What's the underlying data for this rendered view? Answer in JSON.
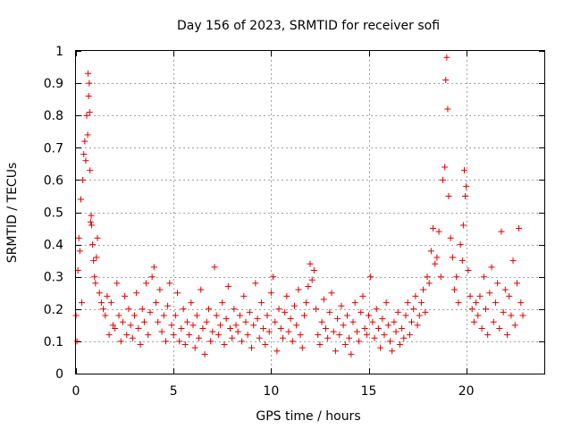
{
  "chart_data": {
    "type": "scatter",
    "title": "Day 156 of 2023, SRMTID for receiver sofi",
    "xlabel": "GPS time / hours",
    "ylabel": "SRMTID / TECUs",
    "xlim": [
      0,
      24
    ],
    "ylim": [
      0,
      1
    ],
    "xticks": [
      0,
      5,
      10,
      15,
      20
    ],
    "xtick_labels": [
      "0",
      "5",
      "10",
      "15",
      "20"
    ],
    "yticks": [
      0,
      0.1,
      0.2,
      0.3,
      0.4,
      0.5,
      0.6,
      0.7,
      0.8,
      0.9,
      1
    ],
    "ytick_labels": [
      "0",
      "0.1",
      "0.2",
      "0.3",
      "0.4",
      "0.5",
      "0.6",
      "0.7",
      "0.8",
      "0.9",
      "1"
    ],
    "grid": true,
    "marker": "+",
    "series": [
      {
        "name": "SRMTID",
        "color": "#e00000",
        "x": [
          0.0,
          0.05,
          0.1,
          0.15,
          0.2,
          0.25,
          0.3,
          0.35,
          0.4,
          0.45,
          0.5,
          0.55,
          0.6,
          0.62,
          0.65,
          0.68,
          0.7,
          0.72,
          0.75,
          0.78,
          0.8,
          0.85,
          0.9,
          0.95,
          1.0,
          1.05,
          1.1,
          1.2,
          1.3,
          1.4,
          1.5,
          1.6,
          1.7,
          1.8,
          1.9,
          2.0,
          2.1,
          2.2,
          2.3,
          2.4,
          2.5,
          2.6,
          2.7,
          2.8,
          2.9,
          3.0,
          3.1,
          3.2,
          3.3,
          3.4,
          3.5,
          3.6,
          3.7,
          3.8,
          3.9,
          4.0,
          4.1,
          4.2,
          4.3,
          4.4,
          4.5,
          4.6,
          4.7,
          4.8,
          4.9,
          5.0,
          5.1,
          5.2,
          5.3,
          5.4,
          5.5,
          5.6,
          5.7,
          5.8,
          5.9,
          6.0,
          6.1,
          6.2,
          6.3,
          6.4,
          6.5,
          6.6,
          6.7,
          6.8,
          6.9,
          7.0,
          7.1,
          7.2,
          7.3,
          7.4,
          7.5,
          7.6,
          7.7,
          7.8,
          7.9,
          8.0,
          8.1,
          8.2,
          8.3,
          8.4,
          8.5,
          8.6,
          8.7,
          8.8,
          8.9,
          9.0,
          9.1,
          9.2,
          9.3,
          9.4,
          9.5,
          9.6,
          9.7,
          9.8,
          9.9,
          10.0,
          10.1,
          10.2,
          10.3,
          10.4,
          10.5,
          10.6,
          10.7,
          10.8,
          10.9,
          11.0,
          11.1,
          11.2,
          11.3,
          11.4,
          11.5,
          11.6,
          11.7,
          11.8,
          11.9,
          12.0,
          12.1,
          12.2,
          12.3,
          12.4,
          12.5,
          12.6,
          12.7,
          12.8,
          12.9,
          13.0,
          13.1,
          13.2,
          13.3,
          13.4,
          13.5,
          13.6,
          13.7,
          13.8,
          13.9,
          14.0,
          14.1,
          14.2,
          14.3,
          14.4,
          14.5,
          14.6,
          14.7,
          14.8,
          14.9,
          15.0,
          15.1,
          15.2,
          15.3,
          15.4,
          15.5,
          15.6,
          15.7,
          15.8,
          15.9,
          16.0,
          16.1,
          16.2,
          16.3,
          16.4,
          16.5,
          16.6,
          16.7,
          16.8,
          16.9,
          17.0,
          17.1,
          17.2,
          17.3,
          17.4,
          17.5,
          17.6,
          17.7,
          17.8,
          17.9,
          18.0,
          18.1,
          18.2,
          18.3,
          18.4,
          18.5,
          18.6,
          18.7,
          18.8,
          18.9,
          18.95,
          19.0,
          19.05,
          19.1,
          19.2,
          19.3,
          19.4,
          19.5,
          19.6,
          19.7,
          19.8,
          19.85,
          19.9,
          19.95,
          20.0,
          20.1,
          20.2,
          20.3,
          20.4,
          20.5,
          20.6,
          20.7,
          20.8,
          20.9,
          21.0,
          21.1,
          21.2,
          21.3,
          21.4,
          21.5,
          21.6,
          21.7,
          21.8,
          21.9,
          22.0,
          22.1,
          22.2,
          22.3,
          22.4,
          22.5,
          22.6,
          22.7,
          22.8,
          22.9
        ],
        "y": [
          0.18,
          0.1,
          0.32,
          0.42,
          0.38,
          0.54,
          0.22,
          0.6,
          0.68,
          0.72,
          0.66,
          0.8,
          0.74,
          0.93,
          0.86,
          0.9,
          0.81,
          0.63,
          0.47,
          0.49,
          0.46,
          0.4,
          0.35,
          0.3,
          0.28,
          0.36,
          0.42,
          0.25,
          0.22,
          0.2,
          0.18,
          0.24,
          0.12,
          0.22,
          0.15,
          0.14,
          0.28,
          0.18,
          0.1,
          0.16,
          0.24,
          0.12,
          0.2,
          0.15,
          0.11,
          0.18,
          0.25,
          0.14,
          0.09,
          0.2,
          0.16,
          0.28,
          0.12,
          0.19,
          0.3,
          0.33,
          0.22,
          0.16,
          0.26,
          0.13,
          0.18,
          0.1,
          0.21,
          0.28,
          0.15,
          0.12,
          0.18,
          0.25,
          0.1,
          0.14,
          0.2,
          0.09,
          0.16,
          0.12,
          0.22,
          0.15,
          0.08,
          0.18,
          0.11,
          0.26,
          0.14,
          0.06,
          0.16,
          0.2,
          0.1,
          0.13,
          0.33,
          0.18,
          0.12,
          0.15,
          0.22,
          0.09,
          0.17,
          0.27,
          0.14,
          0.11,
          0.2,
          0.15,
          0.13,
          0.18,
          0.1,
          0.24,
          0.16,
          0.12,
          0.19,
          0.08,
          0.15,
          0.28,
          0.17,
          0.11,
          0.22,
          0.14,
          0.09,
          0.18,
          0.13,
          0.25,
          0.3,
          0.16,
          0.07,
          0.2,
          0.14,
          0.11,
          0.19,
          0.24,
          0.13,
          0.17,
          0.1,
          0.21,
          0.15,
          0.26,
          0.12,
          0.08,
          0.18,
          0.22,
          0.27,
          0.34,
          0.29,
          0.32,
          0.2,
          0.12,
          0.09,
          0.16,
          0.23,
          0.14,
          0.11,
          0.19,
          0.25,
          0.13,
          0.07,
          0.17,
          0.12,
          0.21,
          0.15,
          0.09,
          0.18,
          0.11,
          0.06,
          0.16,
          0.22,
          0.13,
          0.1,
          0.19,
          0.24,
          0.14,
          0.12,
          0.18,
          0.3,
          0.16,
          0.11,
          0.2,
          0.14,
          0.08,
          0.17,
          0.12,
          0.22,
          0.15,
          0.1,
          0.07,
          0.16,
          0.13,
          0.19,
          0.09,
          0.14,
          0.11,
          0.18,
          0.22,
          0.12,
          0.16,
          0.2,
          0.24,
          0.15,
          0.18,
          0.22,
          0.26,
          0.19,
          0.3,
          0.28,
          0.38,
          0.45,
          0.34,
          0.36,
          0.44,
          0.3,
          0.6,
          0.64,
          0.91,
          0.98,
          0.82,
          0.55,
          0.42,
          0.36,
          0.26,
          0.3,
          0.22,
          0.4,
          0.35,
          0.46,
          0.63,
          0.55,
          0.58,
          0.32,
          0.24,
          0.2,
          0.16,
          0.22,
          0.18,
          0.24,
          0.14,
          0.3,
          0.2,
          0.12,
          0.25,
          0.33,
          0.16,
          0.22,
          0.28,
          0.14,
          0.44,
          0.19,
          0.26,
          0.12,
          0.24,
          0.18,
          0.35,
          0.15,
          0.28,
          0.45,
          0.22,
          0.18
        ]
      }
    ]
  }
}
